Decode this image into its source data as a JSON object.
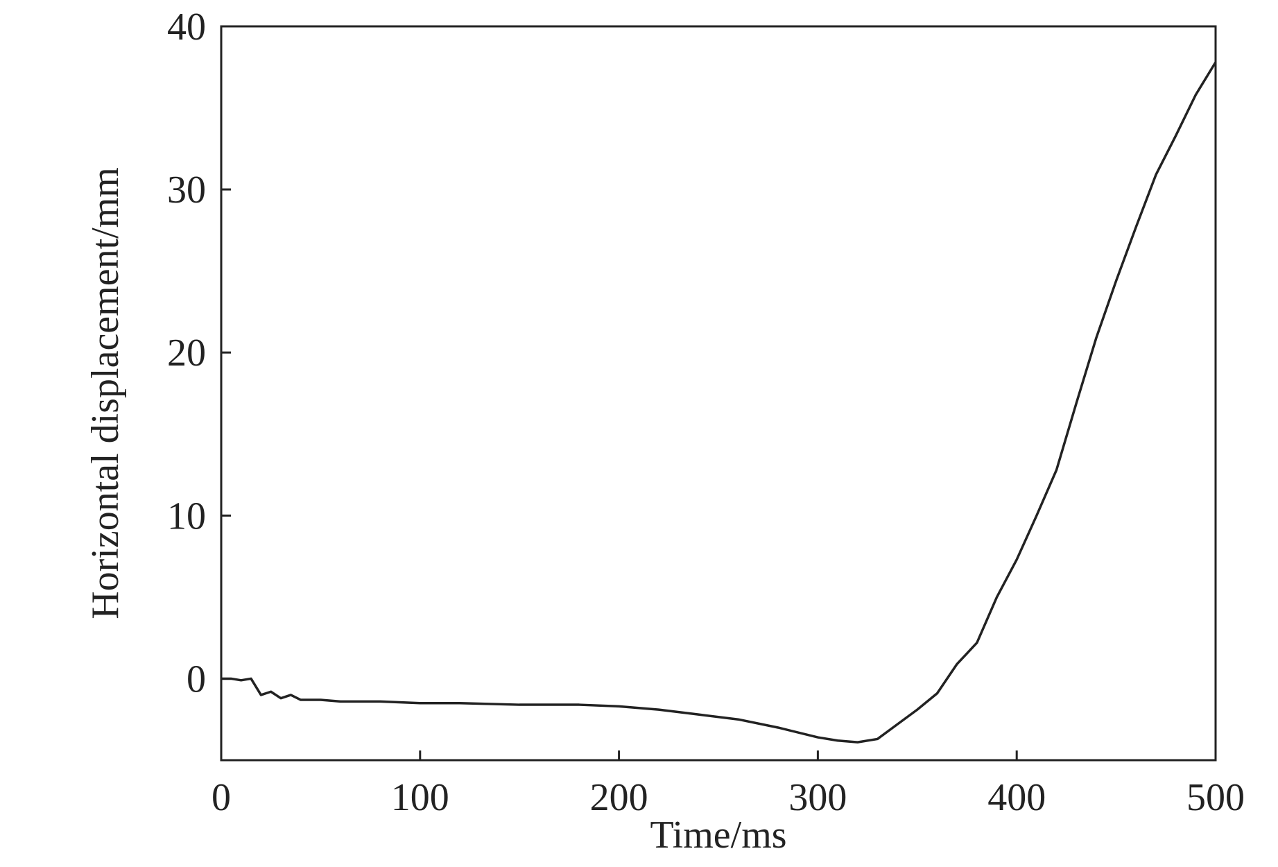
{
  "chart_data": {
    "type": "line",
    "xlabel": "Time/ms",
    "ylabel": "Horizontal displacement/mm",
    "xlim": [
      0,
      500
    ],
    "xticks": [
      0,
      100,
      200,
      300,
      400,
      500
    ],
    "ylim": [
      -5,
      40
    ],
    "yticks": [
      0,
      10,
      20,
      30,
      40
    ],
    "series": [
      {
        "color": "#222222",
        "x": [
          0,
          5,
          10,
          15,
          20,
          25,
          30,
          35,
          40,
          50,
          60,
          80,
          100,
          120,
          150,
          180,
          200,
          220,
          240,
          260,
          280,
          300,
          310,
          320,
          330,
          340,
          350,
          360,
          370,
          380,
          390,
          400,
          410,
          420,
          430,
          440,
          450,
          460,
          470,
          480,
          490,
          500
        ],
        "values": [
          0,
          0,
          -0.1,
          0,
          -1.0,
          -0.8,
          -1.2,
          -1.0,
          -1.3,
          -1.3,
          -1.4,
          -1.4,
          -1.5,
          -1.5,
          -1.6,
          -1.6,
          -1.7,
          -1.9,
          -2.2,
          -2.5,
          -3.0,
          -3.6,
          -3.8,
          -3.9,
          -3.7,
          -2.8,
          -1.9,
          -0.9,
          0.9,
          2.2,
          5.0,
          7.3,
          10.0,
          12.8,
          16.9,
          20.9,
          24.4,
          27.7,
          30.9,
          33.3,
          35.8,
          37.8
        ]
      }
    ]
  }
}
